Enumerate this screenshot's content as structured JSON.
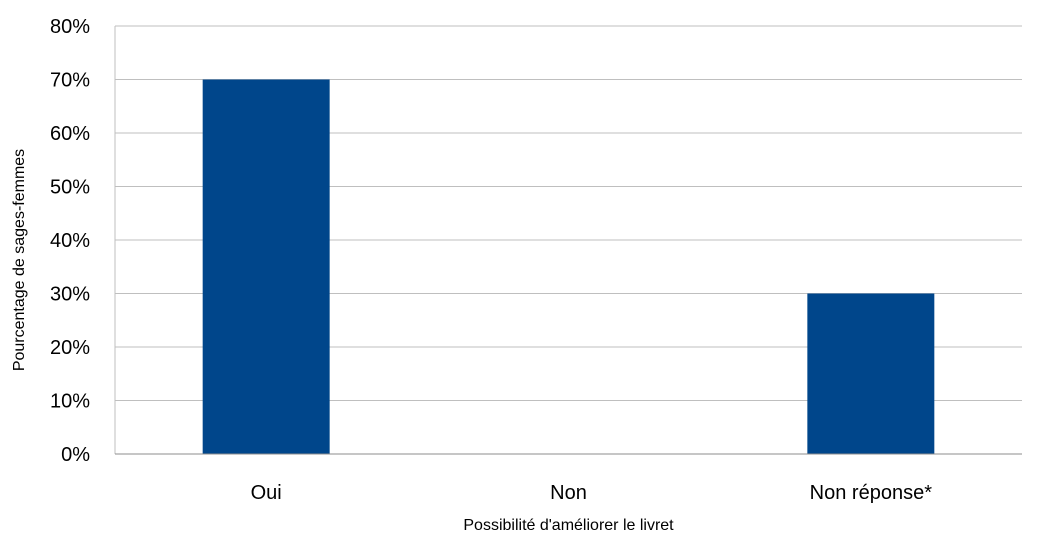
{
  "chart_data": {
    "type": "bar",
    "categories": [
      "Oui",
      "Non",
      "Non réponse*"
    ],
    "values": [
      70,
      0,
      30
    ],
    "xlabel": "Possibilité d'améliorer le livret",
    "ylabel": "Pourcentage de sages-femmes",
    "ylim": [
      0,
      80
    ],
    "ytick_step": 10,
    "y_tick_labels": [
      "0%",
      "10%",
      "20%",
      "30%",
      "40%",
      "50%",
      "60%",
      "70%",
      "80%"
    ],
    "grid": true,
    "legend": false,
    "bar_color": "#00468B"
  }
}
